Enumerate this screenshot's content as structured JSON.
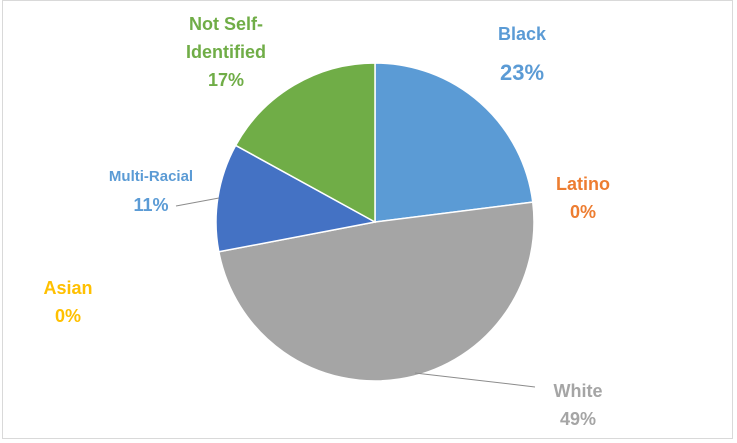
{
  "chart_data": {
    "type": "pie",
    "start_angle_deg": 0,
    "direction": "clockwise",
    "legend": "none",
    "categories": [
      "Black",
      "Latino",
      "White",
      "Asian",
      "Multi-Racial",
      "Not Self-Identified"
    ],
    "values": [
      23,
      0,
      49,
      0,
      11,
      17
    ],
    "value_labels": [
      "23%",
      "0%",
      "49%",
      "0%",
      "11%",
      "17%"
    ],
    "colors": {
      "Black": "#5b9bd5",
      "Latino": "#ed7d31",
      "White": "#a5a5a5",
      "Asian": "#ffc000",
      "Multi-Racial": "#4472c4",
      "Not Self-Identified": "#70ad47"
    },
    "label_colors": {
      "Black": "#5b9bd5",
      "Latino": "#ed7d31",
      "White": "#a5a5a5",
      "Asian": "#ffc000",
      "Multi-Racial": "#5b9bd5",
      "Not Self-Identified": "#70ad47"
    },
    "label_lines": {
      "Black": [
        "Black"
      ],
      "Latino": [
        "Latino"
      ],
      "White": [
        "White"
      ],
      "Asian": [
        "Asian"
      ],
      "Multi-Racial": [
        "Multi-Racial"
      ],
      "Not Self-Identified": [
        "Not Self-",
        "Identified"
      ]
    }
  }
}
